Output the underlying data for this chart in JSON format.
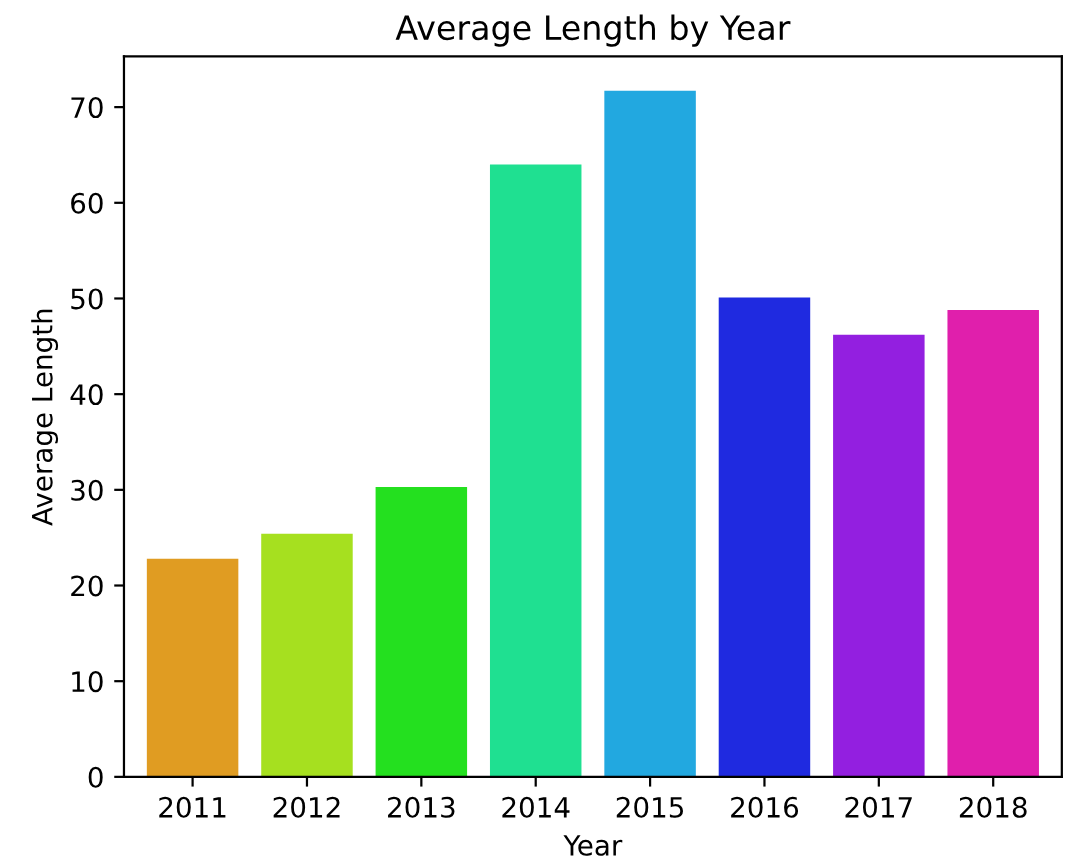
{
  "chart_data": {
    "type": "bar",
    "title": "Average Length by Year",
    "xlabel": "Year",
    "ylabel": "Average Length",
    "categories": [
      "2011",
      "2012",
      "2013",
      "2014",
      "2015",
      "2016",
      "2017",
      "2018"
    ],
    "values": [
      22.8,
      25.4,
      30.3,
      64.0,
      71.7,
      50.1,
      46.2,
      48.8
    ],
    "colors": [
      "#e09c22",
      "#a6e01f",
      "#24e01f",
      "#1fe091",
      "#22a8e0",
      "#1f2ae0",
      "#931fe0",
      "#e01fac"
    ],
    "ylim": [
      0,
      75.3
    ],
    "yticks": [
      0,
      10,
      20,
      30,
      40,
      50,
      60,
      70
    ],
    "grid": false
  }
}
